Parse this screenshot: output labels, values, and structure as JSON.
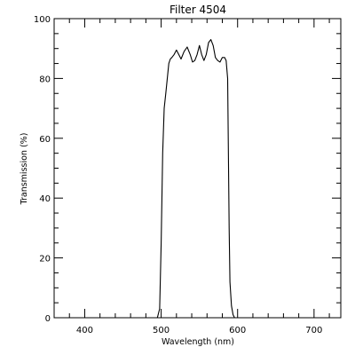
{
  "chart_data": {
    "type": "line",
    "title": "Filter 4504",
    "xlabel": "Wavelength (nm)",
    "ylabel": "Transmission (%)",
    "xlim": [
      360,
      735
    ],
    "ylim": [
      0,
      100
    ],
    "x_ticks": [
      400,
      500,
      600,
      700
    ],
    "y_ticks": [
      0,
      20,
      40,
      60,
      80,
      100
    ],
    "x_minor_step": 20,
    "y_minor_step": 5,
    "grid": false,
    "line_color": "#000000",
    "series": [
      {
        "x": [
          360,
          495,
          498,
          500,
          502,
          504,
          506,
          508,
          510,
          512,
          514,
          517,
          520,
          523,
          526,
          530,
          534,
          538,
          541,
          544,
          547,
          550,
          553,
          556,
          559,
          562,
          565,
          568,
          571,
          574,
          577,
          580,
          583,
          585,
          587,
          589,
          590,
          592,
          594,
          596,
          600,
          735
        ],
        "y": [
          0,
          0,
          3,
          25,
          55,
          70,
          75,
          80,
          85,
          86.5,
          87,
          88,
          89.5,
          88,
          86.5,
          89,
          90.5,
          88,
          85.5,
          86,
          88,
          91,
          88,
          86,
          88,
          92,
          93,
          91,
          87,
          86,
          85.5,
          87,
          87,
          86,
          80,
          30,
          12,
          4,
          1,
          0,
          0,
          0
        ]
      }
    ]
  }
}
